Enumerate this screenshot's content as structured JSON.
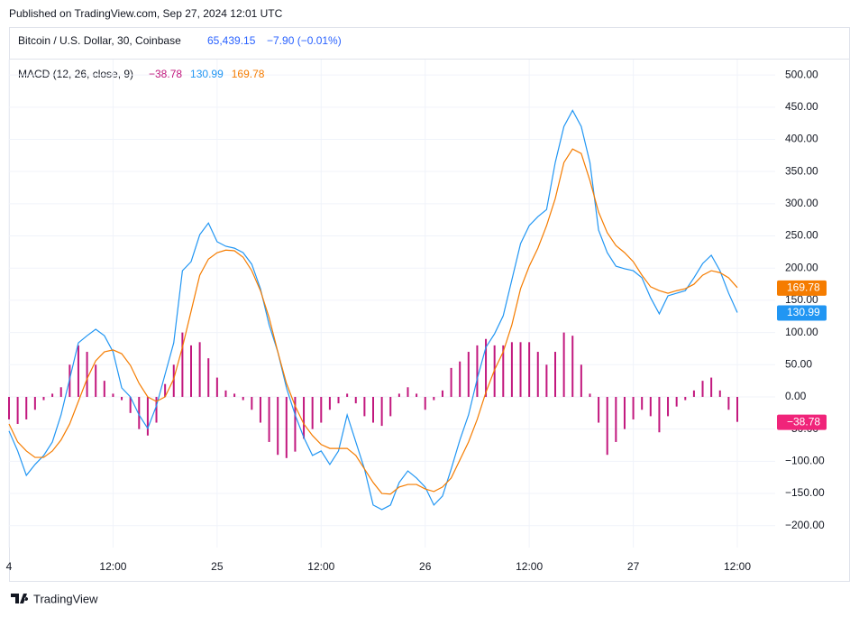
{
  "header": {
    "published": "Published on TradingView.com, Sep 27, 2024 12:01 UTC"
  },
  "symbol": {
    "name": "Bitcoin / U.S. Dollar, 30, Coinbase",
    "price": "65,439.15",
    "change": "−7.90 (−0.01%)"
  },
  "footer": {
    "brand": "TradingView"
  },
  "chart_data": {
    "type": "line",
    "title": "MACD (12, 26, close, 9)",
    "categories": [
      "4",
      null,
      null,
      null,
      null,
      null,
      null,
      null,
      null,
      null,
      null,
      null,
      "12:00",
      null,
      null,
      null,
      null,
      null,
      null,
      null,
      null,
      null,
      null,
      null,
      "25",
      null,
      null,
      null,
      null,
      null,
      null,
      null,
      null,
      null,
      null,
      null,
      "12:00",
      null,
      null,
      null,
      null,
      null,
      null,
      null,
      null,
      null,
      null,
      null,
      "26",
      null,
      null,
      null,
      null,
      null,
      null,
      null,
      null,
      null,
      null,
      null,
      "12:00",
      null,
      null,
      null,
      null,
      null,
      null,
      null,
      null,
      null,
      null,
      null,
      "27",
      null,
      null,
      null,
      null,
      null,
      null,
      null,
      null,
      null,
      null,
      null,
      "12:00"
    ],
    "ylim": [
      -234,
      524
    ],
    "yticks": [
      {
        "value": 500,
        "label": "500.00"
      },
      {
        "value": 450,
        "label": "450.00"
      },
      {
        "value": 400,
        "label": "400.00"
      },
      {
        "value": 350,
        "label": "350.00"
      },
      {
        "value": 300,
        "label": "300.00"
      },
      {
        "value": 250,
        "label": "250.00"
      },
      {
        "value": 200,
        "label": "200.00"
      },
      {
        "value": 150,
        "label": "150.00"
      },
      {
        "value": 100,
        "label": "100.00"
      },
      {
        "value": 50,
        "label": "50.00"
      },
      {
        "value": 0,
        "label": "0.00"
      },
      {
        "value": -50,
        "label": "−50.00"
      },
      {
        "value": -100,
        "label": "−100.00"
      },
      {
        "value": -150,
        "label": "−150.00"
      },
      {
        "value": -200,
        "label": "−200.00"
      }
    ],
    "grid": true,
    "series": [
      {
        "type": "bar",
        "color": "#c2187e",
        "values": [
          -35,
          -42,
          -35,
          -20,
          -5,
          5,
          15,
          50,
          80,
          70,
          50,
          25,
          5,
          -5,
          -25,
          -50,
          -60,
          -40,
          20,
          50,
          100,
          80,
          85,
          60,
          30,
          10,
          5,
          -5,
          -20,
          -40,
          -70,
          -90,
          -95,
          -85,
          -65,
          -50,
          -40,
          -20,
          -10,
          5,
          -10,
          -30,
          -40,
          -45,
          -30,
          5,
          15,
          5,
          -20,
          -5,
          10,
          45,
          55,
          70,
          80,
          90,
          80,
          80,
          85,
          85,
          85,
          70,
          50,
          70,
          100,
          95,
          50,
          5,
          -40,
          -90,
          -70,
          -50,
          -35,
          -20,
          -30,
          -55,
          -30,
          -15,
          -5,
          10,
          25,
          30,
          10,
          -20,
          -38.78
        ],
        "value_labels": [
          null,
          null,
          null,
          null,
          null,
          null,
          null,
          null,
          null,
          null,
          null,
          null,
          null,
          null,
          null,
          null,
          null,
          null,
          null,
          null,
          null,
          null,
          null,
          null,
          null,
          null,
          null,
          null,
          null,
          null,
          null,
          null,
          null,
          null,
          null,
          null,
          null,
          null,
          null,
          null,
          null,
          null,
          null,
          null,
          null,
          null,
          null,
          null,
          null,
          null,
          null,
          null,
          null,
          null,
          null,
          null,
          null,
          null,
          null,
          null,
          null,
          null,
          null,
          null,
          null,
          null,
          null,
          null,
          null,
          null,
          null,
          null,
          null,
          null,
          null,
          null,
          null,
          null,
          null,
          null,
          null,
          null,
          null,
          null,
          "−38.78"
        ],
        "badge_color": "#f0247a"
      },
      {
        "type": "line",
        "color": "#2196f3",
        "values": [
          -53,
          -84,
          -122,
          -105,
          -91,
          -70,
          -28,
          28,
          84,
          95,
          105,
          95,
          70,
          14,
          0,
          -28,
          -49,
          -14,
          35,
          84,
          196,
          210,
          252,
          270,
          241,
          234,
          231,
          224,
          206,
          168,
          112,
          70,
          14,
          -28,
          -63,
          -91,
          -84,
          -105,
          -84,
          -28,
          -70,
          -112,
          -168,
          -175,
          -168,
          -133,
          -115,
          -126,
          -140,
          -168,
          -154,
          -112,
          -67,
          -28,
          28,
          77,
          98,
          126,
          182,
          238,
          266,
          280,
          291,
          364,
          420,
          445,
          420,
          364,
          259,
          224,
          203,
          199,
          196,
          185,
          154,
          129,
          157,
          161,
          165,
          185,
          207,
          220,
          196,
          161,
          130.99
        ],
        "value_labels": [
          null,
          null,
          null,
          null,
          null,
          null,
          null,
          null,
          null,
          null,
          null,
          null,
          null,
          null,
          null,
          null,
          null,
          null,
          null,
          null,
          null,
          null,
          null,
          null,
          null,
          null,
          null,
          null,
          null,
          null,
          null,
          null,
          null,
          null,
          null,
          null,
          null,
          null,
          null,
          null,
          null,
          null,
          null,
          null,
          null,
          null,
          null,
          null,
          null,
          null,
          null,
          null,
          null,
          null,
          null,
          null,
          null,
          null,
          null,
          null,
          null,
          null,
          null,
          null,
          null,
          null,
          null,
          null,
          null,
          null,
          null,
          null,
          null,
          null,
          null,
          null,
          null,
          null,
          null,
          null,
          null,
          null,
          null,
          null,
          "130.99"
        ],
        "badge_color": "#2196f3"
      },
      {
        "type": "line",
        "color": "#f57c00",
        "values": [
          -42,
          -70,
          -84,
          -94,
          -94,
          -84,
          -67,
          -42,
          -7,
          28,
          56,
          70,
          73,
          67,
          49,
          21,
          0,
          -7,
          0,
          28,
          77,
          133,
          189,
          214,
          224,
          228,
          227,
          217,
          196,
          165,
          123,
          70,
          21,
          -14,
          -42,
          -60,
          -74,
          -80,
          -80,
          -80,
          -91,
          -112,
          -133,
          -150,
          -151,
          -140,
          -136,
          -136,
          -143,
          -147,
          -140,
          -126,
          -98,
          -70,
          -35,
          7,
          42,
          70,
          112,
          168,
          203,
          231,
          266,
          308,
          364,
          385,
          378,
          336,
          287,
          255,
          235,
          224,
          210,
          189,
          171,
          165,
          161,
          165,
          168,
          175,
          189,
          196,
          193,
          185,
          169.78
        ],
        "value_labels": [
          null,
          null,
          null,
          null,
          null,
          null,
          null,
          null,
          null,
          null,
          null,
          null,
          null,
          null,
          null,
          null,
          null,
          null,
          null,
          null,
          null,
          null,
          null,
          null,
          null,
          null,
          null,
          null,
          null,
          null,
          null,
          null,
          null,
          null,
          null,
          null,
          null,
          null,
          null,
          null,
          null,
          null,
          null,
          null,
          null,
          null,
          null,
          null,
          null,
          null,
          null,
          null,
          null,
          null,
          null,
          null,
          null,
          null,
          null,
          null,
          null,
          null,
          null,
          null,
          null,
          null,
          null,
          null,
          null,
          null,
          null,
          null,
          null,
          null,
          null,
          null,
          null,
          null,
          null,
          null,
          null,
          null,
          null,
          null,
          "169.78"
        ],
        "badge_color": "#f57c00"
      }
    ]
  }
}
